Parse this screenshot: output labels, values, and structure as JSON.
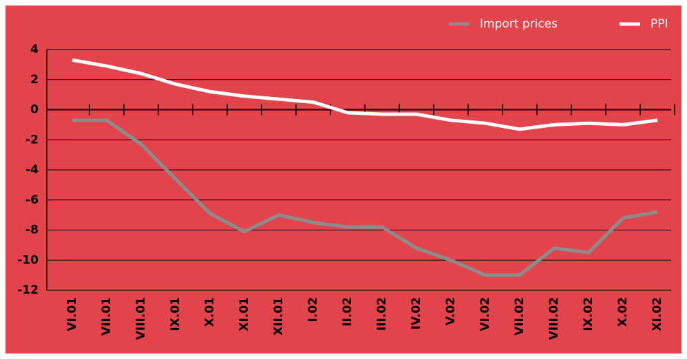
{
  "chart_data": {
    "type": "line",
    "categories": [
      "VI.01",
      "VII.01",
      "VIII.01",
      "IX.01",
      "X.01",
      "XI.01",
      "XII.01",
      "I.02",
      "II.02",
      "III.02",
      "IV.02",
      "V.02",
      "VI.02",
      "VII.02",
      "VIII.02",
      "IX.02",
      "X.02",
      "XI.02"
    ],
    "series": [
      {
        "name": "Import prices",
        "color": "#8c8c8c",
        "values": [
          -0.7,
          -0.7,
          -2.3,
          -4.6,
          -6.9,
          -8.1,
          -7.0,
          -7.5,
          -7.8,
          -7.8,
          -9.2,
          -10.0,
          -11.0,
          -11.0,
          -9.2,
          -9.5,
          -7.2,
          -6.8
        ]
      },
      {
        "name": "PPI",
        "color": "#ffffff",
        "values": [
          3.3,
          2.9,
          2.4,
          1.7,
          1.2,
          0.9,
          0.7,
          0.5,
          -0.2,
          -0.3,
          -0.3,
          -0.7,
          -0.9,
          -1.3,
          -1.0,
          -0.9,
          -1.0,
          -0.7
        ]
      }
    ],
    "ylim": [
      -12,
      4
    ],
    "yticks": [
      -12,
      -10,
      -8,
      -6,
      -4,
      -2,
      0,
      2,
      4
    ],
    "grid": true,
    "legend": "top-right",
    "background": "#e3434a"
  }
}
